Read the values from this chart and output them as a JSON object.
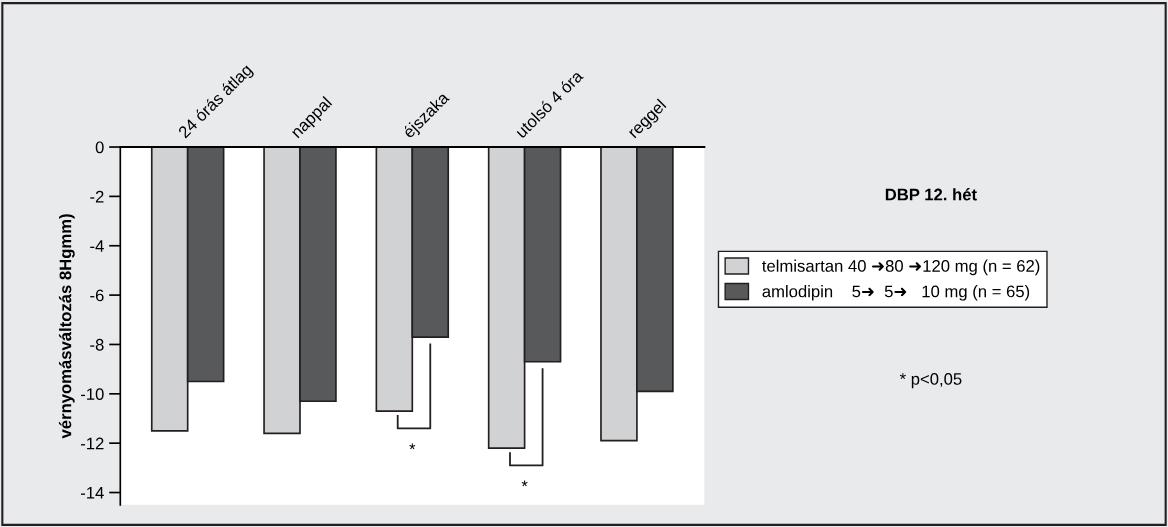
{
  "chart_data": {
    "type": "bar",
    "title": "DBP 12. hét",
    "ylabel": "vérnyomásváltozás 8Hgmm)",
    "categories": [
      "24 órás átlag",
      "nappal",
      "éjszaka",
      "utolsó 4 óra",
      "reggel"
    ],
    "series": [
      {
        "name": "telmisartan 40 ➜80 ➜120 mg (n = 62)",
        "color": "#d1d2d4",
        "values": [
          -11.5,
          -11.6,
          -10.7,
          -12.2,
          -11.9
        ]
      },
      {
        "name": "amlodipin    5➜  5➜   10 mg (n = 65)",
        "color": "#58595b",
        "values": [
          -9.5,
          -10.3,
          -7.7,
          -8.7,
          -9.9
        ]
      }
    ],
    "ylim": [
      -14.5,
      0
    ],
    "yticks": [
      0,
      -2,
      -4,
      -6,
      -8,
      -10,
      -12,
      -14
    ],
    "grid": false,
    "legend": "right",
    "annotations": [
      "*",
      "*",
      "* p<0,05"
    ]
  }
}
